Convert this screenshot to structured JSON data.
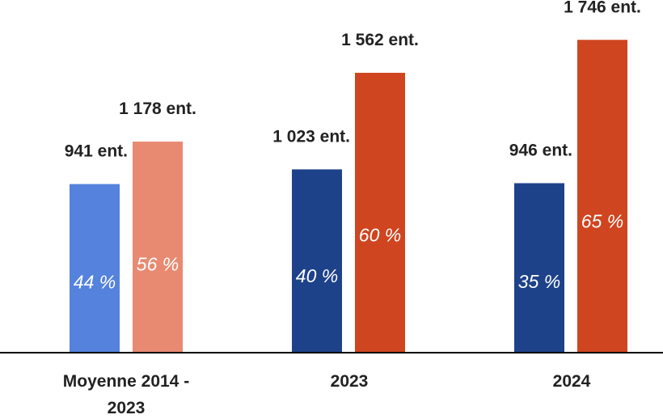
{
  "chart_data": {
    "type": "bar",
    "title": "",
    "xlabel": "",
    "ylabel": "",
    "ylim": [
      0,
      1800
    ],
    "grid": false,
    "legend": "none",
    "categories": [
      {
        "label_lines": [
          "Moyenne 2014 -",
          "2023"
        ]
      },
      {
        "label_lines": [
          "2023"
        ]
      },
      {
        "label_lines": [
          "2024"
        ]
      }
    ],
    "series": [
      {
        "values": [
          941,
          1023,
          946
        ],
        "value_labels": [
          "941 ent.",
          "1 023 ent.",
          "946 ent."
        ],
        "share_labels": [
          "44 %",
          "40 %",
          "35 %"
        ],
        "shares": [
          44,
          40,
          35
        ],
        "colors": [
          "#5482dc",
          "#1e428a",
          "#1e428a"
        ]
      },
      {
        "values": [
          1178,
          1562,
          1746
        ],
        "value_labels": [
          "1 178 ent.",
          "1 562 ent.",
          "1 746 ent."
        ],
        "share_labels": [
          "56 %",
          "60 %",
          "65 %"
        ],
        "shares": [
          56,
          60,
          65
        ],
        "colors": [
          "#e88a72",
          "#cf4520",
          "#cf4520"
        ]
      }
    ],
    "axis_color": "#000000"
  }
}
